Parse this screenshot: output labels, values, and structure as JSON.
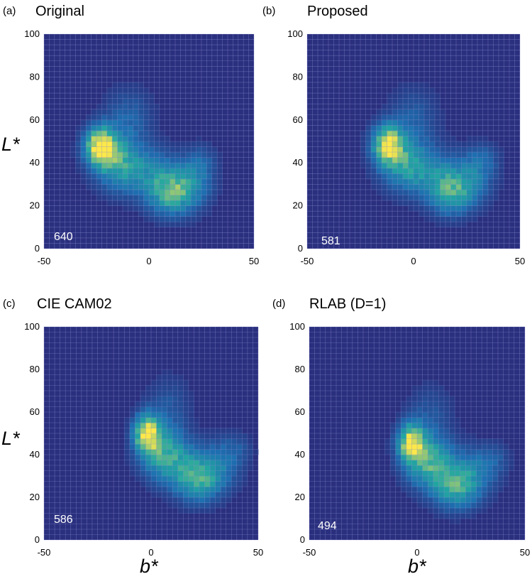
{
  "figure": {
    "colors": {
      "background": "#2a2f7e",
      "low": "#1d6fb0",
      "mid": "#21a6a0",
      "high": "#fde84a"
    },
    "panels": [
      {
        "letter": "(a)",
        "title": "Original",
        "count": "640"
      },
      {
        "letter": "(b)",
        "title": "Proposed",
        "count": "581"
      },
      {
        "letter": "(c)",
        "title": "CIE CAM02",
        "count": "586"
      },
      {
        "letter": "(d)",
        "title": "RLAB (D=1)",
        "count": "494"
      }
    ],
    "ylabel": "L*",
    "xlabel": "b*"
  },
  "chart_data": [
    {
      "type": "heatmap",
      "title": "Original",
      "xlabel": "",
      "ylabel": "L*",
      "xlim": [
        -50,
        50
      ],
      "ylim": [
        0,
        100
      ],
      "xticks": [
        -50,
        0,
        50
      ],
      "yticks": [
        0,
        20,
        40,
        60,
        80,
        100
      ],
      "annotation": "640",
      "grid": true,
      "density_blobs": [
        {
          "b": -23,
          "L": 48,
          "weight": 1.0,
          "spread_b": 5,
          "spread_L": 6
        },
        {
          "b": -15,
          "L": 40,
          "weight": 0.45,
          "spread_b": 8,
          "spread_L": 8
        },
        {
          "b": -10,
          "L": 60,
          "weight": 0.2,
          "spread_b": 8,
          "spread_L": 10
        },
        {
          "b": 10,
          "L": 26,
          "weight": 0.55,
          "spread_b": 7,
          "spread_L": 7
        },
        {
          "b": 20,
          "L": 30,
          "weight": 0.3,
          "spread_b": 7,
          "spread_L": 8
        },
        {
          "b": 25,
          "L": 40,
          "weight": 0.15,
          "spread_b": 5,
          "spread_L": 6
        },
        {
          "b": 0,
          "L": 35,
          "weight": 0.3,
          "spread_b": 10,
          "spread_L": 8
        }
      ]
    },
    {
      "type": "heatmap",
      "title": "Proposed",
      "xlabel": "",
      "ylabel": "",
      "xlim": [
        -50,
        50
      ],
      "ylim": [
        0,
        100
      ],
      "xticks": [
        -50,
        0,
        50
      ],
      "yticks": [
        0,
        20,
        40,
        60,
        80,
        100
      ],
      "annotation": "581",
      "grid": true,
      "density_blobs": [
        {
          "b": -12,
          "L": 49,
          "weight": 0.85,
          "spread_b": 5,
          "spread_L": 6
        },
        {
          "b": -5,
          "L": 40,
          "weight": 0.4,
          "spread_b": 8,
          "spread_L": 8
        },
        {
          "b": 0,
          "L": 60,
          "weight": 0.18,
          "spread_b": 8,
          "spread_L": 10
        },
        {
          "b": 18,
          "L": 26,
          "weight": 0.5,
          "spread_b": 7,
          "spread_L": 7
        },
        {
          "b": 28,
          "L": 33,
          "weight": 0.25,
          "spread_b": 7,
          "spread_L": 8
        },
        {
          "b": 33,
          "L": 42,
          "weight": 0.15,
          "spread_b": 5,
          "spread_L": 5
        },
        {
          "b": 8,
          "L": 35,
          "weight": 0.3,
          "spread_b": 10,
          "spread_L": 8
        }
      ]
    },
    {
      "type": "heatmap",
      "title": "CIE CAM02",
      "xlabel": "b*",
      "ylabel": "L*",
      "xlim": [
        -50,
        50
      ],
      "ylim": [
        0,
        100
      ],
      "xticks": [
        -50,
        0,
        50
      ],
      "yticks": [
        0,
        20,
        40,
        60,
        80,
        100
      ],
      "annotation": "586",
      "grid": true,
      "density_blobs": [
        {
          "b": -2,
          "L": 50,
          "weight": 0.95,
          "spread_b": 4,
          "spread_L": 6
        },
        {
          "b": 5,
          "L": 42,
          "weight": 0.4,
          "spread_b": 7,
          "spread_L": 8
        },
        {
          "b": 8,
          "L": 62,
          "weight": 0.15,
          "spread_b": 7,
          "spread_L": 10
        },
        {
          "b": 22,
          "L": 28,
          "weight": 0.5,
          "spread_b": 7,
          "spread_L": 7
        },
        {
          "b": 32,
          "L": 35,
          "weight": 0.25,
          "spread_b": 7,
          "spread_L": 8
        },
        {
          "b": 40,
          "L": 43,
          "weight": 0.12,
          "spread_b": 5,
          "spread_L": 5
        },
        {
          "b": 12,
          "L": 36,
          "weight": 0.3,
          "spread_b": 9,
          "spread_L": 8
        }
      ]
    },
    {
      "type": "heatmap",
      "title": "RLAB (D=1)",
      "xlabel": "b*",
      "ylabel": "",
      "xlim": [
        -50,
        50
      ],
      "ylim": [
        0,
        100
      ],
      "xticks": [
        -50,
        0,
        50
      ],
      "yticks": [
        0,
        20,
        40,
        60,
        80,
        100
      ],
      "annotation": "494",
      "grid": true,
      "density_blobs": [
        {
          "b": -3,
          "L": 46,
          "weight": 0.85,
          "spread_b": 4,
          "spread_L": 6
        },
        {
          "b": 4,
          "L": 39,
          "weight": 0.4,
          "spread_b": 7,
          "spread_L": 8
        },
        {
          "b": 6,
          "L": 58,
          "weight": 0.15,
          "spread_b": 7,
          "spread_L": 10
        },
        {
          "b": 18,
          "L": 25,
          "weight": 0.5,
          "spread_b": 7,
          "spread_L": 7
        },
        {
          "b": 28,
          "L": 32,
          "weight": 0.22,
          "spread_b": 7,
          "spread_L": 8
        },
        {
          "b": 36,
          "L": 38,
          "weight": 0.12,
          "spread_b": 5,
          "spread_L": 5
        },
        {
          "b": 10,
          "L": 33,
          "weight": 0.3,
          "spread_b": 9,
          "spread_L": 8
        }
      ]
    }
  ]
}
